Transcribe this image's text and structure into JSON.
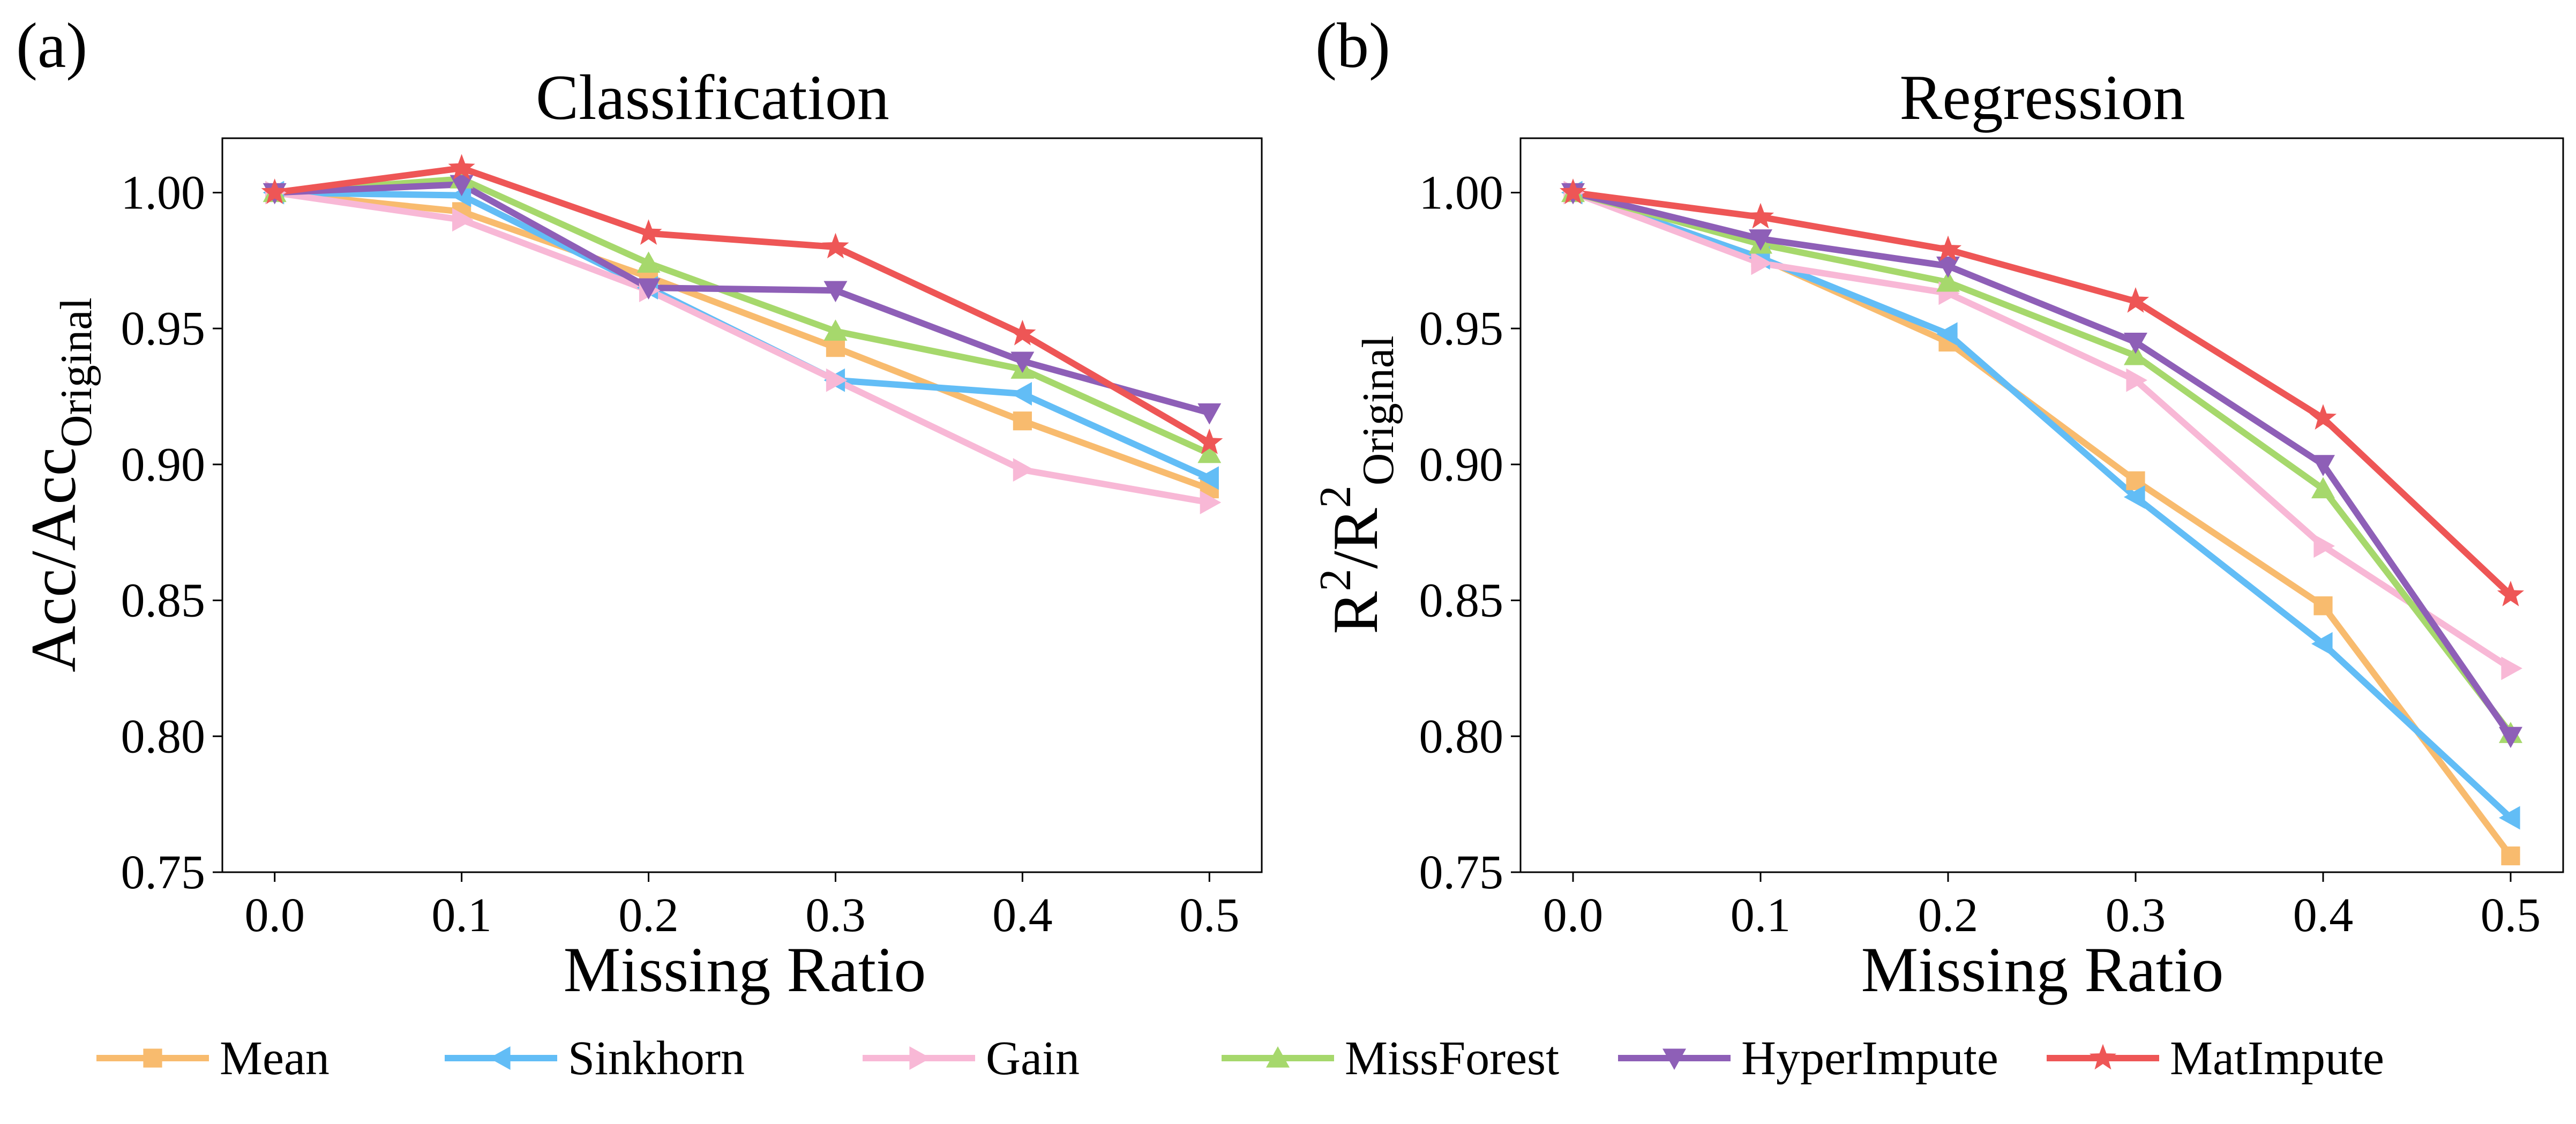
{
  "figure": {
    "panels": [
      {
        "label": "(a)"
      },
      {
        "label": "(b)"
      }
    ],
    "legend": {
      "position": "bottom",
      "entries": [
        {
          "name": "Mean",
          "color": "#F8BB6E",
          "marker": "square"
        },
        {
          "name": "Sinkhorn",
          "color": "#62BDF6",
          "marker": "triangle-left"
        },
        {
          "name": "Gain",
          "color": "#F8B8D6",
          "marker": "triangle-right"
        },
        {
          "name": "MissForest",
          "color": "#A6D86C",
          "marker": "triangle-up"
        },
        {
          "name": "HyperImpute",
          "color": "#8E5FB7",
          "marker": "triangle-down"
        },
        {
          "name": "MatImpute",
          "color": "#EE5656",
          "marker": "star"
        }
      ]
    }
  },
  "chart_data": [
    {
      "type": "line",
      "title": "Classification",
      "xlabel": "Missing Ratio",
      "ylabel": {
        "base": "Acc/Acc",
        "subscript": "Original"
      },
      "x": [
        0.0,
        0.1,
        0.2,
        0.3,
        0.4,
        0.5
      ],
      "xticks": [
        "0.0",
        "0.1",
        "0.2",
        "0.3",
        "0.4",
        "0.5"
      ],
      "yticks": [
        "0.75",
        "0.80",
        "0.85",
        "0.90",
        "0.95",
        "1.00"
      ],
      "xlim": [
        -0.028,
        0.528
      ],
      "ylim": [
        0.75,
        1.02
      ],
      "grid": false,
      "series": [
        {
          "name": "Mean",
          "values": [
            1.0,
            0.993,
            0.969,
            0.943,
            0.916,
            0.891
          ]
        },
        {
          "name": "Sinkhorn",
          "values": [
            1.0,
            0.999,
            0.965,
            0.931,
            0.926,
            0.895
          ]
        },
        {
          "name": "Gain",
          "values": [
            1.0,
            0.99,
            0.964,
            0.931,
            0.898,
            0.886
          ]
        },
        {
          "name": "MissForest",
          "values": [
            1.0,
            1.005,
            0.974,
            0.949,
            0.935,
            0.904
          ]
        },
        {
          "name": "HyperImpute",
          "values": [
            1.0,
            1.003,
            0.965,
            0.964,
            0.938,
            0.919
          ]
        },
        {
          "name": "MatImpute",
          "values": [
            1.0,
            1.009,
            0.985,
            0.98,
            0.948,
            0.908
          ]
        }
      ]
    },
    {
      "type": "line",
      "title": "Regression",
      "xlabel": "Missing Ratio",
      "ylabel": {
        "base": "R",
        "sup1": "2",
        "mid": "/R",
        "sup2": "2",
        "subscript": "Original"
      },
      "x": [
        0.0,
        0.1,
        0.2,
        0.3,
        0.4,
        0.5
      ],
      "xticks": [
        "0.0",
        "0.1",
        "0.2",
        "0.3",
        "0.4",
        "0.5"
      ],
      "yticks": [
        "0.75",
        "0.80",
        "0.85",
        "0.90",
        "0.95",
        "1.00"
      ],
      "xlim": [
        -0.028,
        0.528
      ],
      "ylim": [
        0.75,
        1.02
      ],
      "grid": false,
      "series": [
        {
          "name": "Mean",
          "values": [
            1.0,
            0.976,
            0.945,
            0.894,
            0.848,
            0.756
          ]
        },
        {
          "name": "Sinkhorn",
          "values": [
            1.0,
            0.976,
            0.948,
            0.888,
            0.834,
            0.77
          ]
        },
        {
          "name": "Gain",
          "values": [
            1.0,
            0.974,
            0.963,
            0.931,
            0.87,
            0.825
          ]
        },
        {
          "name": "MissForest",
          "values": [
            1.0,
            0.981,
            0.967,
            0.94,
            0.891,
            0.801
          ]
        },
        {
          "name": "HyperImpute",
          "values": [
            1.0,
            0.983,
            0.973,
            0.945,
            0.9,
            0.8
          ]
        },
        {
          "name": "MatImpute",
          "values": [
            1.0,
            0.991,
            0.979,
            0.96,
            0.917,
            0.852
          ]
        }
      ]
    }
  ]
}
